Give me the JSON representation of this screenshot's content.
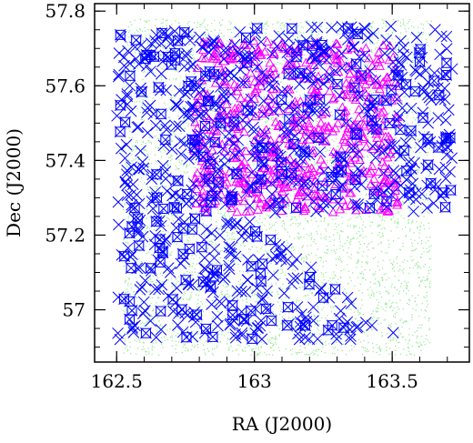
{
  "chart_data": {
    "type": "scatter",
    "title": "",
    "xlabel": "RA (J2000)",
    "ylabel": "Dec (J2000)",
    "xlim": [
      162.42,
      163.78
    ],
    "ylim": [
      56.86,
      57.82
    ],
    "xticks": [
      162.5,
      163,
      163.5
    ],
    "xtick_labels": [
      "162.5",
      "163",
      "163.5"
    ],
    "yticks": [
      57,
      57.2,
      57.4,
      57.6,
      57.8
    ],
    "ytick_labels": [
      "57",
      "57.2",
      "57.4",
      "57.6",
      "57.8"
    ],
    "grid": false,
    "legend": "none",
    "series": [
      {
        "marker": "dot",
        "color": "#00cc00",
        "footprint": {
          "ra": [
            162.52,
            163.64
          ],
          "dec": [
            56.88,
            57.78
          ]
        }
      },
      {
        "marker": "triangle",
        "color": "#ff00ff",
        "region": {
          "ra": [
            162.78,
            163.52
          ],
          "dec": [
            57.26,
            57.72
          ]
        }
      },
      {
        "marker": "cross",
        "color": "#0000ff",
        "region": {
          "ra": [
            162.5,
            163.72
          ],
          "dec": [
            56.92,
            57.76
          ]
        }
      }
    ]
  }
}
